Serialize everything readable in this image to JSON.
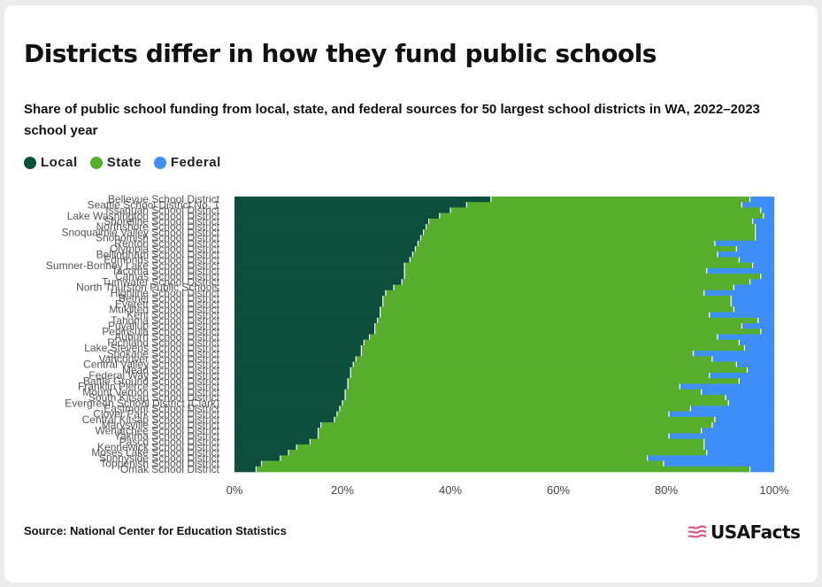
{
  "title": "Districts differ in how they fund public schools",
  "subtitle": "Share of public school funding from local, state, and federal sources for 50 largest school districts in WA, 2022–2023 school year",
  "source": "Source: National Center for Education Statistics",
  "brand": "USAFacts",
  "colors": {
    "local": "#0b4f3c",
    "state": "#57ad2c",
    "federal": "#3e8ef7"
  },
  "chart_data": {
    "type": "bar",
    "orientation": "horizontal",
    "stacked": true,
    "title": "Districts differ in how they fund public schools",
    "xlim": [
      0,
      100
    ],
    "x_tick_labels": [
      "0%",
      "20%",
      "40%",
      "60%",
      "80%",
      "100%"
    ],
    "x_ticks": [
      0,
      20,
      40,
      60,
      80,
      100
    ],
    "legend_position": "top-left",
    "series": [
      {
        "name": "Local",
        "color": "#0b4f3c"
      },
      {
        "name": "State",
        "color": "#57ad2c"
      },
      {
        "name": "Federal",
        "color": "#3e8ef7"
      }
    ],
    "categories": [
      "Bellevue School District",
      "Seattle School District No. 1",
      "Issaquah School District",
      "Lake Washington School District",
      "Shoreline School District",
      "Northshore School District",
      "Snoqualmie Valley School District",
      "Snohomish School District",
      "Renton School District",
      "Olympia School District",
      "Bellingham School District",
      "Edmonds School District",
      "Sumner-Bonney Lake School District",
      "Tacoma School District",
      "Camas School District",
      "Tumwater School District",
      "North Thurston Public Schools",
      "Highline School District",
      "Bethel School District",
      "Everett School District",
      "Mukilteo School District",
      "Kent School District",
      "Tahoma School District",
      "Puyallup School District",
      "Peninsula School District",
      "Auburn School District",
      "Richland School District",
      "Lake Stevens School District",
      "Spokane School District",
      "Vancouver School District",
      "Central Valley School District",
      "Mead School District",
      "Federal Way School District",
      "Battle Ground School District",
      "Franklin Pierce School District",
      "Mount Vernon School District",
      "South Kitsap School District",
      "Evergreen School District (Clark)",
      "Eastmont School District",
      "Clover Park School District",
      "Central Kitsap School District",
      "Marysville School District",
      "Wenatchee School District",
      "Yakima School District",
      "Pasco School District",
      "Kennewick School District",
      "Moses Lake School District",
      "Sunnyside School District",
      "Toppenish School District",
      "Omak School District"
    ],
    "local": [
      47.5,
      43.0,
      40.0,
      38.0,
      36.0,
      35.5,
      35.0,
      34.5,
      34.0,
      33.5,
      33.0,
      32.5,
      31.5,
      31.5,
      31.5,
      31.0,
      29.5,
      28.0,
      27.5,
      27.5,
      27.0,
      27.0,
      26.5,
      26.0,
      26.0,
      25.0,
      24.0,
      23.5,
      23.5,
      22.5,
      22.0,
      21.5,
      21.5,
      21.0,
      21.0,
      20.5,
      20.5,
      20.0,
      19.5,
      19.0,
      18.5,
      16.0,
      15.5,
      15.5,
      14.0,
      11.5,
      10.0,
      8.5,
      5.0,
      4.0
    ],
    "state": [
      48.0,
      51.0,
      57.5,
      60.0,
      60.0,
      61.0,
      61.5,
      62.0,
      55.0,
      59.5,
      56.5,
      61.0,
      64.5,
      56.0,
      66.0,
      64.5,
      63.0,
      59.0,
      64.5,
      64.5,
      65.5,
      61.0,
      70.5,
      68.0,
      71.5,
      64.5,
      69.5,
      71.0,
      61.5,
      66.0,
      71.0,
      73.5,
      66.5,
      72.5,
      61.5,
      66.0,
      70.5,
      71.5,
      65.0,
      61.5,
      70.5,
      72.5,
      71.0,
      65.0,
      73.0,
      75.5,
      77.5,
      68.0,
      74.5,
      91.5
    ],
    "federal": [
      4.5,
      6.0,
      2.5,
      2.0,
      4.0,
      3.5,
      3.5,
      3.5,
      11.0,
      7.0,
      10.5,
      6.5,
      4.0,
      12.5,
      2.5,
      4.5,
      7.5,
      13.0,
      8.0,
      8.0,
      7.5,
      12.0,
      3.0,
      6.0,
      2.5,
      10.5,
      6.5,
      5.5,
      15.0,
      11.5,
      7.0,
      5.0,
      12.0,
      6.5,
      17.5,
      13.5,
      9.0,
      8.5,
      15.5,
      19.5,
      11.0,
      11.5,
      13.5,
      19.5,
      13.0,
      13.0,
      12.5,
      23.5,
      20.5,
      4.5
    ]
  }
}
